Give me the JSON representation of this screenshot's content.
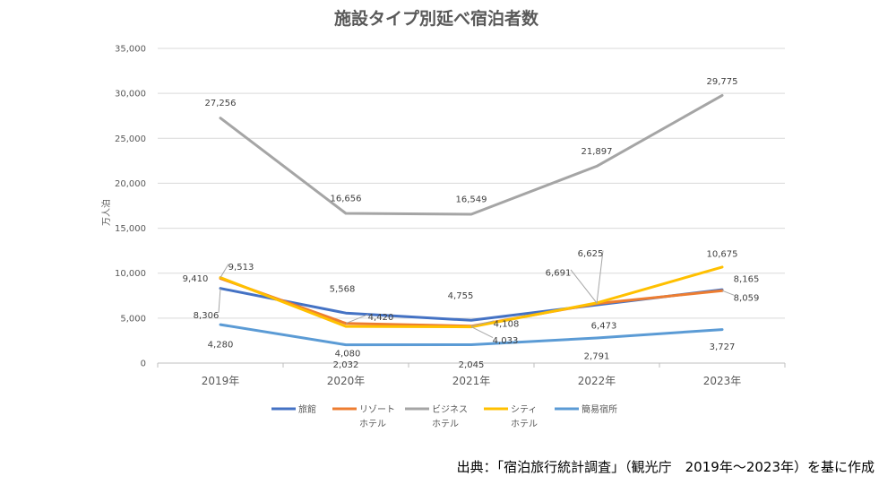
{
  "chart_data": {
    "type": "line",
    "title": "施設タイプ別延べ宿泊者数",
    "ylabel": "万人泊",
    "xlabel": "",
    "ylim": [
      0,
      35000
    ],
    "yticks": [
      0,
      5000,
      10000,
      15000,
      20000,
      25000,
      30000,
      35000
    ],
    "ytick_labels": [
      "0",
      "5,000",
      "10,000",
      "15,000",
      "20,000",
      "25,000",
      "30,000",
      "35,000"
    ],
    "categories": [
      "2019年",
      "2020年",
      "2021年",
      "2022年",
      "2023年"
    ],
    "grid": true,
    "legend_position": "bottom",
    "series": [
      {
        "name": "旅館",
        "color": "#4472C4",
        "values": [
          8306,
          5568,
          4755,
          6473,
          8165
        ],
        "labels": [
          "8,306",
          "5,568",
          "4,755",
          "6,473",
          "8,165"
        ]
      },
      {
        "name": "リゾート\nホテル",
        "color": "#ED7D31",
        "values": [
          9410,
          4420,
          4108,
          6625,
          8059
        ],
        "labels": [
          "9,410",
          "4,420",
          "4,108",
          "6,625",
          "8,059"
        ]
      },
      {
        "name": "ビジネス\nホテル",
        "color": "#A5A5A5",
        "values": [
          27256,
          16656,
          16549,
          21897,
          29775
        ],
        "labels": [
          "27,256",
          "16,656",
          "16,549",
          "21,897",
          "29,775"
        ]
      },
      {
        "name": "シティ\nホテル",
        "color": "#FFC000",
        "values": [
          9513,
          4080,
          4033,
          6691,
          10675
        ],
        "labels": [
          "9,513",
          "4,080",
          "4,033",
          "6,691",
          "10,675"
        ]
      },
      {
        "name": "簡易宿所",
        "color": "#5B9BD5",
        "values": [
          4280,
          2032,
          2045,
          2791,
          3727
        ],
        "labels": [
          "4,280",
          "2,032",
          "2,045",
          "2,791",
          "3,727"
        ]
      }
    ]
  },
  "source_note": "出典：「宿泊旅行統計調査」（観光庁　2019年～2023年）を基に作成"
}
